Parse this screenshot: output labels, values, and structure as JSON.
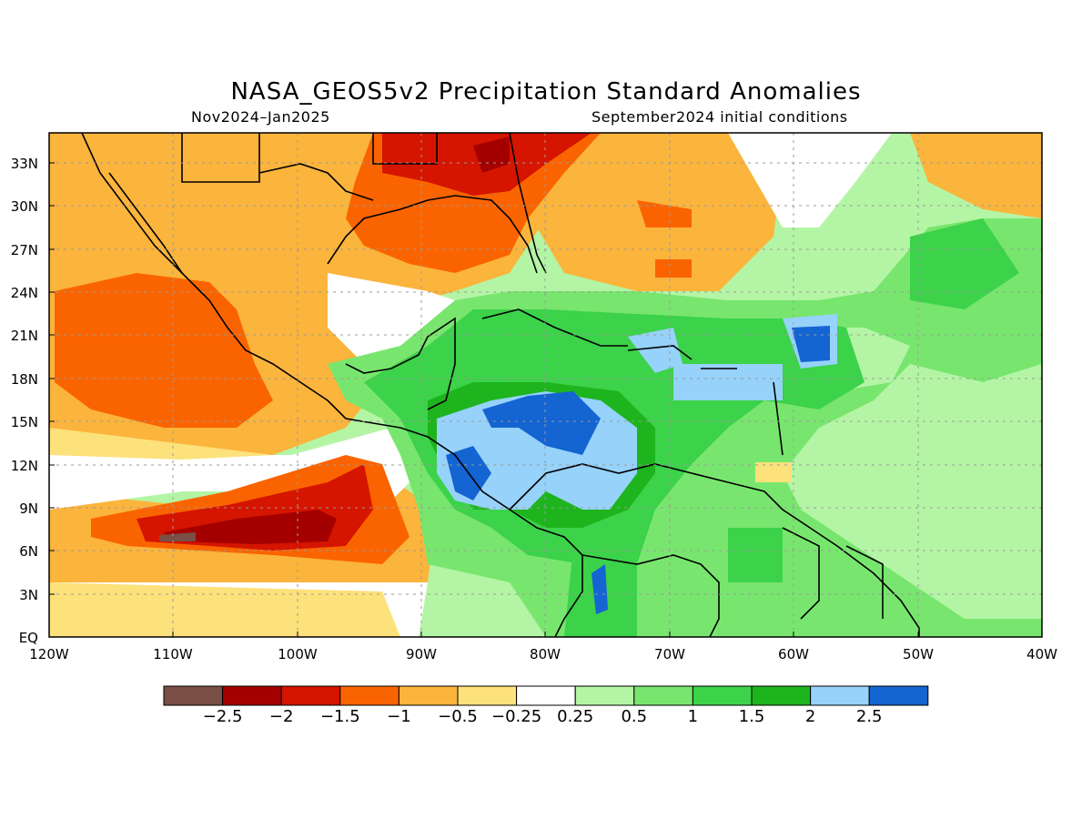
{
  "title": "NASA_GEOS5v2 Precipitation Standard Anomalies",
  "subtitle_left": "Nov2024–Jan2025",
  "subtitle_right": "September2024 initial conditions",
  "lat_labels": [
    "33N",
    "30N",
    "27N",
    "24N",
    "21N",
    "18N",
    "15N",
    "12N",
    "9N",
    "6N",
    "3N",
    "EQ"
  ],
  "lon_labels": [
    "120W",
    "110W",
    "100W",
    "90W",
    "80W",
    "70W",
    "60W",
    "50W",
    "40W"
  ],
  "colorbar": {
    "colors": [
      "#7a4f45",
      "#a50000",
      "#d51500",
      "#fa6400",
      "#fbb43c",
      "#fde17a",
      "#ffffff",
      "#b4f5a5",
      "#78e66e",
      "#3cd24a",
      "#1eb41e",
      "#96d2fa",
      "#1464d2"
    ],
    "labels": [
      "−2.5",
      "−2",
      "−1.5",
      "−1",
      "−0.5",
      "−0.25",
      "0.25",
      "0.5",
      "1",
      "1.5",
      "2",
      "2.5"
    ]
  },
  "colors": {
    "land_border": "#000000",
    "grid": "#9a9a9a"
  }
}
